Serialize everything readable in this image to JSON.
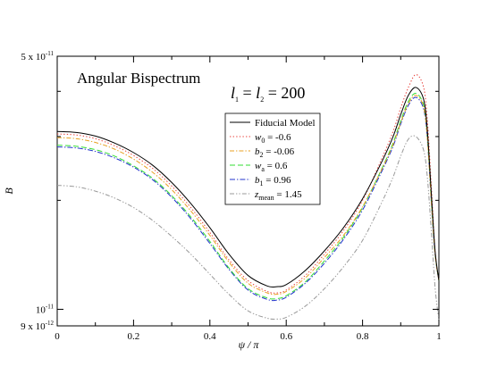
{
  "chart_data": {
    "type": "line",
    "title": "Angular Bispectrum",
    "annotation_l": {
      "l1": "l",
      "sub1": "1",
      "eq": " = ",
      "l2": "l",
      "sub2": "2",
      "value": " = 200"
    },
    "xlabel": "ψ / π",
    "ylabel": "B",
    "xlim": [
      0,
      1
    ],
    "ylim": [
      9e-12,
      5e-11
    ],
    "yscale": "log",
    "x_ticks": [
      {
        "value": 0,
        "label": "0"
      },
      {
        "value": 0.2,
        "label": "0.2"
      },
      {
        "value": 0.4,
        "label": "0.4"
      },
      {
        "value": 0.6,
        "label": "0.6"
      },
      {
        "value": 0.8,
        "label": "0.8"
      },
      {
        "value": 1,
        "label": "1"
      }
    ],
    "y_ticks": [
      {
        "value": 9e-12,
        "mant": "9 x 10",
        "exp": "-12"
      },
      {
        "value": 1e-11,
        "mant": "10",
        "exp": "-11"
      },
      {
        "value": 5e-11,
        "mant": "5 x 10",
        "exp": "-11"
      }
    ],
    "grid": false,
    "legend_position": "upper-center",
    "x": [
      0.0,
      0.05,
      0.1,
      0.15,
      0.2,
      0.25,
      0.3,
      0.35,
      0.4,
      0.45,
      0.5,
      0.55,
      0.575,
      0.6,
      0.65,
      0.7,
      0.75,
      0.8,
      0.85,
      0.88,
      0.9,
      0.92,
      0.94,
      0.96,
      0.97,
      0.98,
      0.99,
      1.0
    ],
    "series": [
      {
        "label_main": "Fiducial Model",
        "label_sub": "",
        "label_value": "",
        "color": "#000000",
        "dash": "",
        "values": [
          3.1e-11,
          3.08e-11,
          3.01e-11,
          2.88e-11,
          2.71e-11,
          2.5e-11,
          2.24e-11,
          1.96e-11,
          1.68e-11,
          1.42e-11,
          1.24e-11,
          1.16e-11,
          1.155e-11,
          1.17e-11,
          1.28e-11,
          1.45e-11,
          1.68e-11,
          2.02e-11,
          2.55e-11,
          3e-11,
          3.45e-11,
          3.9e-11,
          4.1e-11,
          3.8e-11,
          3.1e-11,
          2.1e-11,
          1.45e-11,
          1.2e-11
        ]
      },
      {
        "label_main": "w",
        "label_sub": "0",
        "label_value": " = -0.6",
        "color": "#e8403a",
        "dash": "1.4,2.2",
        "values": [
          3.05e-11,
          3.03e-11,
          2.96e-11,
          2.83e-11,
          2.66e-11,
          2.45e-11,
          2.19e-11,
          1.91e-11,
          1.63e-11,
          1.37e-11,
          1.2e-11,
          1.12e-11,
          1.11e-11,
          1.13e-11,
          1.24e-11,
          1.42e-11,
          1.65e-11,
          2e-11,
          2.6e-11,
          3.1e-11,
          3.6e-11,
          4.1e-11,
          4.45e-11,
          4.1e-11,
          3.3e-11,
          2.2e-11,
          1.45e-11,
          1.2e-11
        ]
      },
      {
        "label_main": "b",
        "label_sub": "2",
        "label_value": " = -0.06",
        "color": "#e8a020",
        "dash": "5,2,1.4,2",
        "values": [
          2.98e-11,
          2.96e-11,
          2.89e-11,
          2.77e-11,
          2.6e-11,
          2.39e-11,
          2.14e-11,
          1.87e-11,
          1.6e-11,
          1.35e-11,
          1.18e-11,
          1.11e-11,
          1.1e-11,
          1.12e-11,
          1.22e-11,
          1.39e-11,
          1.6e-11,
          1.92e-11,
          2.43e-11,
          2.85e-11,
          3.28e-11,
          3.7e-11,
          3.9e-11,
          3.62e-11,
          2.95e-11,
          2e-11,
          1.42e-11,
          1.2e-11
        ]
      },
      {
        "label_main": "w",
        "label_sub": "a",
        "label_value": " = 0.6",
        "color": "#33dd33",
        "dash": "6,3",
        "values": [
          2.84e-11,
          2.82e-11,
          2.76e-11,
          2.65e-11,
          2.49e-11,
          2.3e-11,
          2.06e-11,
          1.8e-11,
          1.54e-11,
          1.3e-11,
          1.14e-11,
          1.075e-11,
          1.07e-11,
          1.09e-11,
          1.19e-11,
          1.36e-11,
          1.58e-11,
          1.91e-11,
          2.44e-11,
          2.88e-11,
          3.32e-11,
          3.75e-11,
          3.95e-11,
          3.66e-11,
          3e-11,
          2.02e-11,
          1.43e-11,
          1.2e-11
        ]
      },
      {
        "label_main": "b",
        "label_sub": "1",
        "label_value": " = 0.96",
        "color": "#2233cc",
        "dash": "6,2,1.4,2",
        "values": [
          2.81e-11,
          2.79e-11,
          2.73e-11,
          2.62e-11,
          2.47e-11,
          2.28e-11,
          2.04e-11,
          1.78e-11,
          1.52e-11,
          1.29e-11,
          1.13e-11,
          1.065e-11,
          1.06e-11,
          1.08e-11,
          1.18e-11,
          1.34e-11,
          1.56e-11,
          1.88e-11,
          2.4e-11,
          2.82e-11,
          3.25e-11,
          3.66e-11,
          3.85e-11,
          3.57e-11,
          2.93e-11,
          1.99e-11,
          1.42e-11,
          1.2e-11
        ]
      },
      {
        "label_main": "z",
        "label_sub": "mean",
        "label_value": " = 1.45",
        "color": "#999999",
        "dash": "5,2,1.4,2,1.4,2",
        "values": [
          2.2e-11,
          2.18e-11,
          2.12e-11,
          2.03e-11,
          1.91e-11,
          1.76e-11,
          1.59e-11,
          1.42e-11,
          1.25e-11,
          1.1e-11,
          9.9e-12,
          9.45e-12,
          9.4e-12,
          9.5e-12,
          1.02e-11,
          1.14e-11,
          1.31e-11,
          1.55e-11,
          1.97e-11,
          2.32e-11,
          2.65e-11,
          2.95e-11,
          3e-11,
          2.75e-11,
          2.3e-11,
          1.65e-11,
          1.15e-11,
          9.3e-12
        ]
      }
    ]
  }
}
